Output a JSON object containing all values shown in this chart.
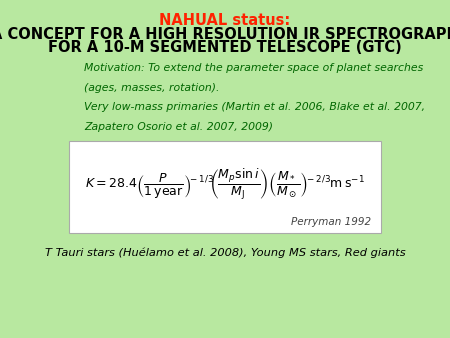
{
  "bg_color": "#b8e8a0",
  "title_line1": "NAHUAL status:",
  "title_line2": "A CONCEPT FOR A HIGH RESOLUTION IR SPECTROGRAPH",
  "title_line3": "FOR A 10-M SEGMENTED TELESCOPE (GTC)",
  "title_color_line1": "#ff2200",
  "title_color_line23": "#000000",
  "motivation_line1": "Motivation: To extend the parameter space of planet searches",
  "motivation_line2": "(ages, masses, rotation).",
  "motivation_line3": "Very low-mass primaries (Martin et al. 2006, Blake et al. 2007,",
  "motivation_line4": "Zapatero Osorio et al. 2007, 2009)",
  "motivation_color": "#006600",
  "formula_box_color": "#ffffff",
  "perryman_text": "Perryman 1992",
  "perryman_color": "#444444",
  "bottom_text": "T Tauri stars (Huélamo et al. 2008), Young MS stars, Red giants",
  "bottom_color": "#000000"
}
